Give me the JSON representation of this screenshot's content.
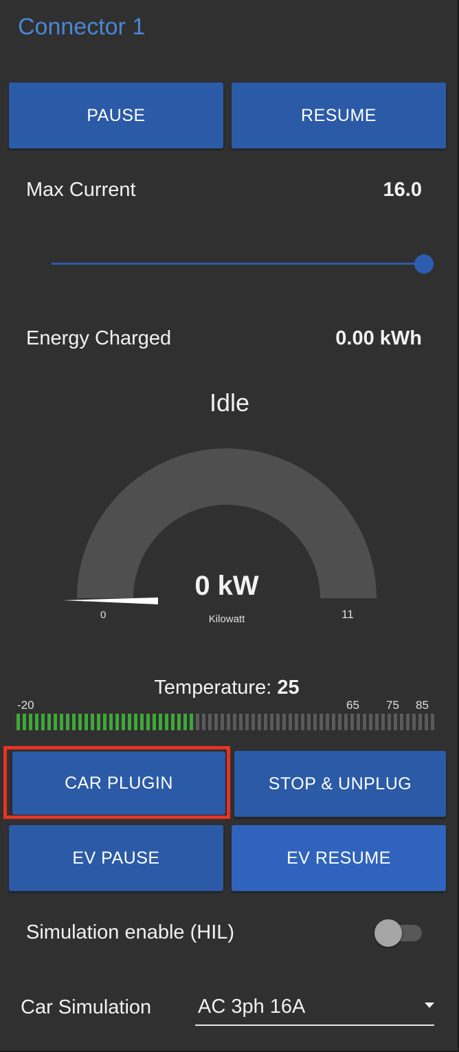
{
  "connector": {
    "title": "Connector 1"
  },
  "controls": {
    "pause_label": "PAUSE",
    "resume_label": "RESUME"
  },
  "max_current": {
    "label": "Max Current",
    "value": "16.0",
    "slider_fraction": 1.0
  },
  "energy": {
    "label": "Energy Charged",
    "value": "0.00 kWh"
  },
  "status": {
    "text": "Idle"
  },
  "gauge": {
    "value_text": "0 kW",
    "unit": "Kilowatt",
    "min": "0",
    "max": "11",
    "value": 0,
    "color_fill": "#4f4f4f",
    "needle_color": "#ffffff"
  },
  "temperature": {
    "label": "Temperature: ",
    "value": "25",
    "ticks": {
      "min": "-20",
      "t65": "65",
      "t75": "75",
      "t85": "85"
    },
    "active_segments": 29,
    "total_segments": 68,
    "active_color": "#3fa73a",
    "inactive_color": "#5a5a5a"
  },
  "ev_controls": {
    "car_plugin_label": "CAR PLUGIN",
    "stop_unplug_label": "STOP & UNPLUG",
    "ev_pause_label": "EV PAUSE",
    "ev_resume_label": "EV RESUME"
  },
  "simulation": {
    "label": "Simulation enable (HIL)",
    "enabled": false
  },
  "car_simulation": {
    "label": "Car Simulation",
    "selected": "AC 3ph 16A"
  }
}
